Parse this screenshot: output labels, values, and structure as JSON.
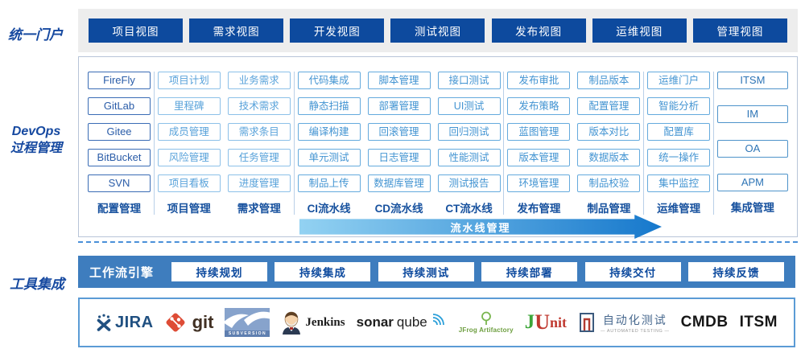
{
  "portal": {
    "label": "统一门户",
    "views": [
      "项目视图",
      "需求视图",
      "开发视图",
      "测试视图",
      "发布视图",
      "运维视图",
      "管理视图"
    ]
  },
  "process": {
    "label_line1": "DevOps",
    "label_line2": "过程管理",
    "pipeline_label": "流水线管理",
    "groups": [
      {
        "columns": [
          {
            "name": "配置管理",
            "tone": "dark",
            "items": [
              "FireFly",
              "GitLab",
              "Gitee",
              "BitBucket",
              "SVN"
            ]
          }
        ]
      },
      {
        "columns": [
          {
            "name": "项目管理",
            "tone": "light",
            "items": [
              "项目计划",
              "里程碑",
              "成员管理",
              "风险管理",
              "项目看板"
            ]
          },
          {
            "name": "需求管理",
            "tone": "light",
            "items": [
              "业务需求",
              "技术需求",
              "需求条目",
              "任务管理",
              "进度管理"
            ]
          }
        ]
      },
      {
        "columns": [
          {
            "name": "CI流水线",
            "tone": "mid",
            "items": [
              "代码集成",
              "静态扫描",
              "编译构建",
              "单元测试",
              "制品上传"
            ]
          },
          {
            "name": "CD流水线",
            "tone": "mid",
            "items": [
              "脚本管理",
              "部署管理",
              "回滚管理",
              "日志管理",
              "数据库管理"
            ]
          },
          {
            "name": "CT流水线",
            "tone": "mid",
            "items": [
              "接口测试",
              "UI测试",
              "回归测试",
              "性能测试",
              "测试报告"
            ]
          }
        ]
      },
      {
        "columns": [
          {
            "name": "发布管理",
            "tone": "mid",
            "items": [
              "发布审批",
              "发布策略",
              "蓝图管理",
              "版本管理",
              "环境管理"
            ]
          },
          {
            "name": "制品管理",
            "tone": "mid",
            "items": [
              "制品版本",
              "配置管理",
              "版本对比",
              "数据版本",
              "制品校验"
            ]
          }
        ]
      },
      {
        "columns": [
          {
            "name": "运维管理",
            "tone": "mid",
            "items": [
              "运维门户",
              "智能分析",
              "配置库",
              "统一操作",
              "集中监控"
            ]
          }
        ]
      },
      {
        "columns": [
          {
            "name": "集成管理",
            "tone": "steel",
            "tall": true,
            "items": [
              "ITSM",
              "IM",
              "OA",
              "APM"
            ]
          }
        ]
      }
    ]
  },
  "tools": {
    "label": "工具集成",
    "workflow": {
      "engine_label": "工作流引擎",
      "stages": [
        "持续规划",
        "持续集成",
        "持续测试",
        "持续部署",
        "持续交付",
        "持续反馈"
      ]
    },
    "logos": [
      {
        "id": "jira",
        "text": "JIRA"
      },
      {
        "id": "git",
        "text": "git"
      },
      {
        "id": "subversion",
        "text": "SUBVERSION"
      },
      {
        "id": "jenkins",
        "text": "Jenkins"
      },
      {
        "id": "sonarqube",
        "text_bold": "sonar",
        "text": "qube"
      },
      {
        "id": "jfrog",
        "text": "JFrog Artifactory"
      },
      {
        "id": "junit",
        "text_j": "J",
        "text": "Unit"
      },
      {
        "id": "autotest",
        "text": "自动化测试",
        "subtext": "— AUTOMATED TESTING —"
      },
      {
        "id": "cmdb",
        "text": "CMDB"
      },
      {
        "id": "itsm",
        "text": "ITSM"
      }
    ]
  },
  "colors": {
    "primary_button": "#0d4a9e",
    "side_label": "#1649a0",
    "workflow_bar": "#3e7dbe",
    "box_dark_border": "#3a6cb5",
    "box_light_border": "#8cc0e8",
    "box_mid_border": "#64aadd",
    "arrow_gradient_start": "#93d2f2",
    "arrow_gradient_end": "#1678cc",
    "dashed_line": "#4a90d9",
    "logo_box_border": "#5b9bd5"
  }
}
